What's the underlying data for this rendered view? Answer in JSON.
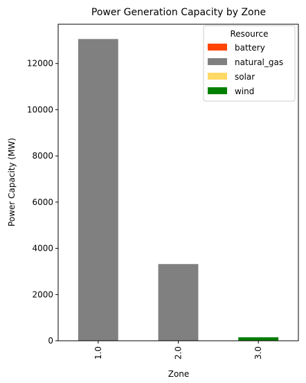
{
  "chart_data": {
    "type": "bar",
    "stacked": true,
    "title": "Power Generation Capacity by Zone",
    "xlabel": "Zone",
    "ylabel": "Power Capacity (MW)",
    "categories": [
      "1.0",
      "2.0",
      "3.0"
    ],
    "ylim": [
      0,
      13700
    ],
    "yticks": [
      0,
      2000,
      4000,
      6000,
      8000,
      10000,
      12000
    ],
    "grid": false,
    "legend": {
      "title": "Resource",
      "placement": "top-right"
    },
    "series": [
      {
        "name": "battery",
        "color": "#ff4500",
        "values": [
          0,
          0,
          0
        ]
      },
      {
        "name": "natural_gas",
        "color": "#808080",
        "values": [
          13060,
          3320,
          0
        ]
      },
      {
        "name": "solar",
        "color": "#ffd966",
        "values": [
          0,
          0,
          0
        ]
      },
      {
        "name": "wind",
        "color": "#008000",
        "values": [
          0,
          0,
          150
        ]
      }
    ]
  }
}
